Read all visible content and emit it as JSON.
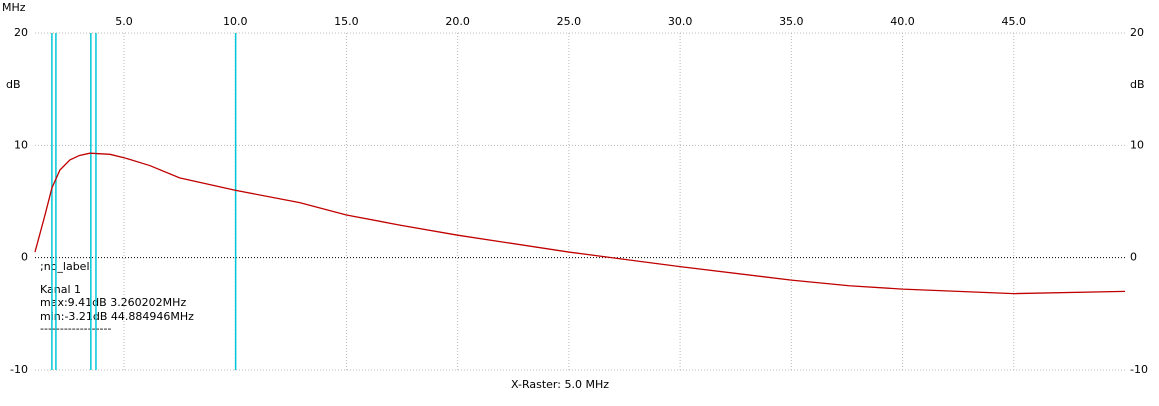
{
  "chart_data": {
    "type": "line",
    "x_unit": "MHz",
    "y_label": "dB",
    "xlim": [
      1,
      50
    ],
    "ylim": [
      -10,
      20
    ],
    "xticks": [
      {
        "value": 5,
        "label": "5.0"
      },
      {
        "value": 10,
        "label": "10.0"
      },
      {
        "value": 15,
        "label": "15.0"
      },
      {
        "value": 20,
        "label": "20.0"
      },
      {
        "value": 25,
        "label": "25.0"
      },
      {
        "value": 30,
        "label": "30.0"
      },
      {
        "value": 35,
        "label": "35.0"
      },
      {
        "value": 40,
        "label": "40.0"
      },
      {
        "value": 45,
        "label": "45.0"
      }
    ],
    "yticks": [
      20,
      10,
      0,
      -10
    ],
    "grid": true,
    "markers": {
      "color": "#00c8d8",
      "x": [
        1.76,
        1.94,
        3.51,
        3.74,
        10.02
      ]
    },
    "x": [
      1,
      1.45,
      1.76,
      2.12,
      2.57,
      3.0,
      3.47,
      4.37,
      5,
      6.16,
      7.5,
      10,
      12.9,
      15,
      17.4,
      20,
      25,
      30,
      35,
      37.6,
      40,
      45,
      50
    ],
    "series": [
      {
        "name": "Kanal 1",
        "color": "#c00000",
        "values": [
          0.5,
          3.8,
          6.2,
          7.8,
          8.7,
          9.1,
          9.3,
          9.2,
          8.9,
          8.2,
          7.1,
          6.0,
          4.9,
          3.8,
          2.9,
          2.0,
          0.5,
          -0.8,
          -2.0,
          -2.5,
          -2.8,
          -3.2,
          -3.0
        ]
      }
    ],
    "annotations": [
      ";no_label",
      "max:9.41dB 3.260202MHz",
      "min:-3.21dB 44.884946MHz",
      "------------------"
    ],
    "footer": "X-Raster: 5.0 MHz"
  }
}
